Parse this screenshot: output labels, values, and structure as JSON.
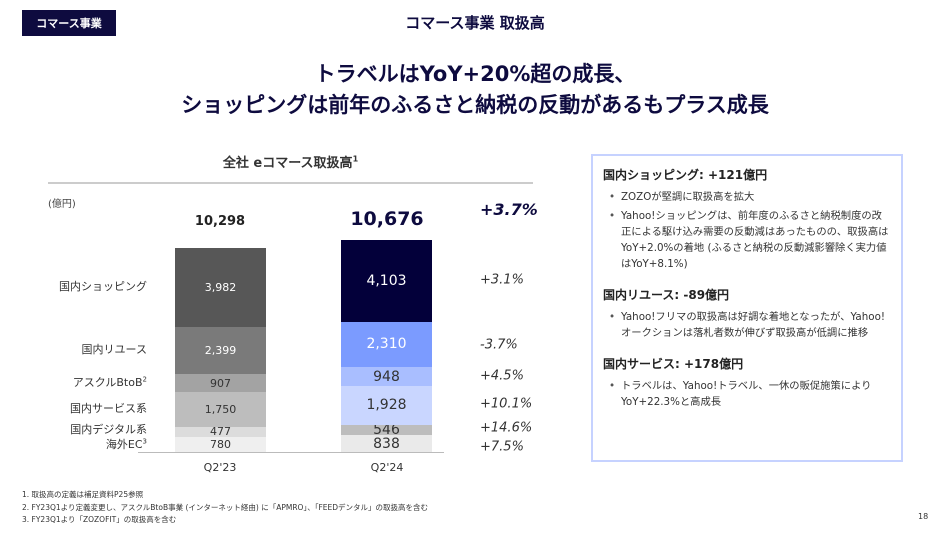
{
  "header": {
    "tag": "コマース事業",
    "title": "コマース事業 取扱高"
  },
  "headline": [
    "トラベルはYoY+20%超の成長、",
    "ショッピングは前年のふるさと納税の反動があるもプラス成長"
  ],
  "chart_data": {
    "type": "bar",
    "stacked": true,
    "title": "全社 eコマース取扱高",
    "title_sup": "1",
    "unit": "(億円)",
    "categories": [
      "Q2'23",
      "Q2'24"
    ],
    "totals": [
      "10,298",
      "10,676"
    ],
    "total_growth": "+3.7%",
    "series": [
      {
        "name": "国内ショッピング",
        "sup": "",
        "values": [
          3982,
          4103
        ],
        "labels": [
          "3,982",
          "4,103"
        ],
        "growth": "+3.1%",
        "colors": [
          "#575757",
          "#03003a"
        ]
      },
      {
        "name": "国内リユース",
        "sup": "",
        "values": [
          2399,
          2310
        ],
        "labels": [
          "2,399",
          "2,310"
        ],
        "growth": "-3.7%",
        "colors": [
          "#7a7a7a",
          "#7b9bff"
        ]
      },
      {
        "name": "アスクルBtoB",
        "sup": "2",
        "values": [
          907,
          948
        ],
        "labels": [
          "907",
          "948"
        ],
        "growth": "+4.5%",
        "colors": [
          "#a3a3a3",
          "#a9beff"
        ]
      },
      {
        "name": "国内サービス系",
        "sup": "",
        "values": [
          1750,
          1928
        ],
        "labels": [
          "1,750",
          "1,928"
        ],
        "growth": "+10.1%",
        "colors": [
          "#bdbdbd",
          "#c9d6ff"
        ]
      },
      {
        "name": "国内デジタル系",
        "sup": "",
        "values": [
          477,
          546
        ],
        "labels": [
          "477",
          "546"
        ],
        "growth": "+14.6%",
        "colors": [
          "#dcdcdc",
          "#bdbdbd"
        ]
      },
      {
        "name": "海外EC",
        "sup": "3",
        "values": [
          780,
          838
        ],
        "labels": [
          "780",
          "838"
        ],
        "growth": "+7.5%",
        "colors": [
          "#efefef",
          "#eaeaea"
        ]
      }
    ]
  },
  "panel": [
    {
      "heading": "国内ショッピング: +121億円",
      "bullets": [
        "ZOZOが堅調に取扱高を拡大",
        "Yahoo!ショッピングは、前年度のふるさと納税制度の改正による駆け込み需要の反動減はあったものの、取扱高はYoY+2.0%の着地 (ふるさと納税の反動減影響除く実力値はYoY+8.1%)"
      ]
    },
    {
      "heading": "国内リユース: -89億円",
      "bullets": [
        "Yahoo!フリマの取扱高は好調な着地となったが、Yahoo!オークションは落札者数が伸びず取扱高が低調に推移"
      ]
    },
    {
      "heading": "国内サービス: +178億円",
      "bullets": [
        "トラベルは、Yahoo!トラベル、一休の販促施策によりYoY+22.3%と高成長"
      ]
    }
  ],
  "footnotes": [
    "1.  取扱高の定義は補足資料P25参照",
    "2.  FY23Q1より定義変更し、アスクルBtoB事業 (インターネット経由) に「APMRO」、「FEEDデンタル」の取扱高を含む",
    "3.  FY23Q1より「ZOZOFIT」の取扱高を含む"
  ],
  "page_number": "18"
}
